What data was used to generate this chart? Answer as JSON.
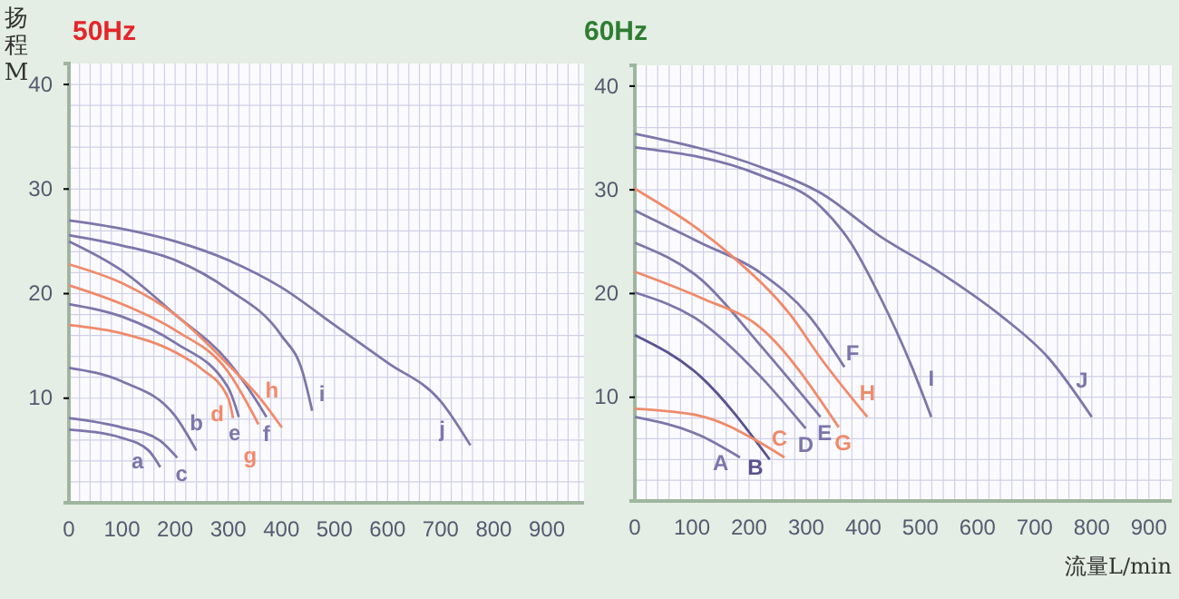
{
  "chart_data": [
    {
      "type": "line",
      "title": "50Hz",
      "ylabel": "扬程M",
      "xlim": [
        0,
        970
      ],
      "ylim": [
        0,
        42
      ],
      "xticks": [
        0,
        100,
        200,
        300,
        400,
        500,
        600,
        700,
        800,
        900
      ],
      "yticks": [
        10,
        20,
        30,
        40
      ],
      "grid": true,
      "legend": false,
      "marker": "none",
      "line_style": "solid",
      "series": [
        {
          "name": "a",
          "color": "#7d76aa",
          "x": [
            0,
            100,
            150,
            172
          ],
          "values": [
            7,
            6.2,
            5,
            3.4
          ]
        },
        {
          "name": "b",
          "color": "#7d76aa",
          "x": [
            0,
            100,
            200,
            240
          ],
          "values": [
            12.9,
            11.6,
            8.3,
            5
          ]
        },
        {
          "name": "c",
          "color": "#7d76aa",
          "x": [
            0,
            100,
            170,
            204
          ],
          "values": [
            8.1,
            7.2,
            6,
            4.3
          ]
        },
        {
          "name": "d",
          "color": "#f08a6a",
          "x": [
            0,
            100,
            200,
            250,
            300,
            309
          ],
          "values": [
            17,
            16.2,
            14.4,
            12.8,
            10,
            8.1
          ]
        },
        {
          "name": "e",
          "color": "#7d76aa",
          "x": [
            0,
            100,
            200,
            300,
            320
          ],
          "values": [
            19,
            17.8,
            15.3,
            11,
            8.2
          ]
        },
        {
          "name": "f",
          "color": "#7d76aa",
          "x": [
            0,
            100,
            200,
            300,
            350,
            372
          ],
          "values": [
            25,
            22.2,
            18,
            13.5,
            10,
            8.2
          ]
        },
        {
          "name": "g",
          "color": "#f08a6a",
          "x": [
            0,
            100,
            200,
            300,
            357
          ],
          "values": [
            20.8,
            19,
            16.5,
            12.5,
            7.5
          ]
        },
        {
          "name": "h",
          "color": "#f08a6a",
          "x": [
            0,
            100,
            200,
            300,
            360,
            401
          ],
          "values": [
            22.8,
            21,
            18,
            13.2,
            10,
            7.2
          ]
        },
        {
          "name": "i",
          "color": "#7d76aa",
          "x": [
            0,
            100,
            200,
            300,
            400,
            440,
            458
          ],
          "values": [
            25.6,
            24.6,
            23.2,
            20.4,
            16,
            12.5,
            8.8
          ]
        },
        {
          "name": "j",
          "color": "#7d76aa",
          "x": [
            0,
            100,
            200,
            300,
            400,
            500,
            600,
            700,
            756
          ],
          "values": [
            27,
            26.2,
            25,
            23.2,
            20.6,
            17,
            13.4,
            9.7,
            5.5
          ]
        }
      ]
    },
    {
      "type": "line",
      "title": "60Hz",
      "xlabel": "流量L/min",
      "xlim": [
        0,
        940
      ],
      "ylim": [
        0,
        42
      ],
      "xticks": [
        0,
        100,
        200,
        300,
        400,
        500,
        600,
        700,
        800,
        900
      ],
      "yticks": [
        10,
        20,
        30,
        40
      ],
      "grid": true,
      "legend": false,
      "marker": "none",
      "line_style": "solid",
      "series": [
        {
          "name": "A",
          "color": "#7d76aa",
          "x": [
            0,
            115,
            184
          ],
          "values": [
            8.1,
            6.3,
            4.2
          ]
        },
        {
          "name": "B",
          "color": "#5a5290",
          "x": [
            0,
            115,
            236
          ],
          "values": [
            16,
            12,
            4
          ]
        },
        {
          "name": "C",
          "color": "#f08a6a",
          "x": [
            0,
            115,
            220,
            262
          ],
          "values": [
            8.9,
            8.2,
            5.6,
            4.2
          ]
        },
        {
          "name": "D",
          "color": "#7d76aa",
          "x": [
            0,
            115,
            220,
            299
          ],
          "values": [
            20.1,
            17.3,
            12,
            7
          ]
        },
        {
          "name": "E",
          "color": "#7d76aa",
          "x": [
            0,
            115,
            220,
            325
          ],
          "values": [
            24.9,
            21.4,
            15,
            8.1
          ]
        },
        {
          "name": "F",
          "color": "#7d76aa",
          "x": [
            0,
            115,
            220,
            304,
            367
          ],
          "values": [
            28,
            24.9,
            22,
            17.9,
            12.9
          ]
        },
        {
          "name": "G",
          "color": "#f08a6a",
          "x": [
            0,
            115,
            220,
            357
          ],
          "values": [
            22.1,
            19.6,
            16.7,
            7.1
          ]
        },
        {
          "name": "H",
          "color": "#f08a6a",
          "x": [
            0,
            168,
            273,
            325,
            407
          ],
          "values": [
            30.1,
            23.7,
            17.9,
            13.8,
            8.1
          ]
        },
        {
          "name": "I",
          "color": "#7d76aa",
          "x": [
            0,
            220,
            325,
            378,
            430,
            483,
            519
          ],
          "values": [
            34.1,
            31.4,
            28.4,
            24.9,
            19.6,
            13.2,
            8.1
          ]
        },
        {
          "name": "J",
          "color": "#7d76aa",
          "x": [
            0,
            220,
            325,
            430,
            535,
            640,
            724,
            800
          ],
          "values": [
            35.4,
            32.2,
            29.7,
            25.5,
            22,
            17.9,
            13.8,
            8.1
          ]
        }
      ]
    }
  ]
}
